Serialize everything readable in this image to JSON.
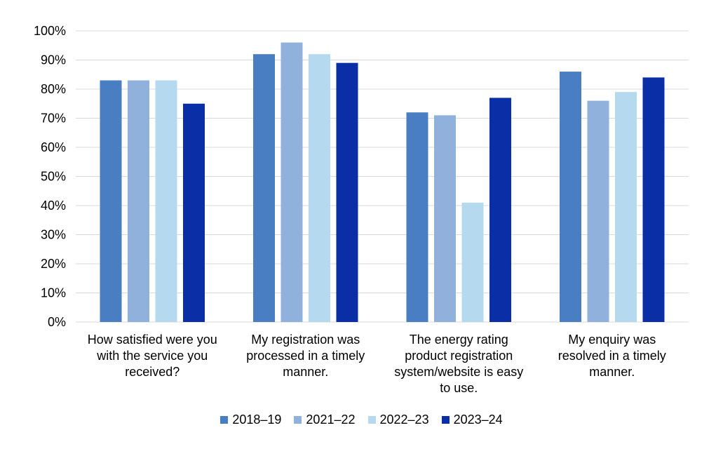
{
  "chart_data": {
    "type": "bar",
    "categories": [
      "How satisfied were you\nwith the service you\nreceived?",
      "My registration was\nprocessed in a timely\nmanner.",
      "The energy rating\nproduct registration\nsystem/website is easy\nto use.",
      "My enquiry was\nresolved in a timely\nmanner."
    ],
    "series": [
      {
        "name": "2018–19",
        "color": "#4a7ec2",
        "values": [
          83,
          92,
          72,
          86
        ]
      },
      {
        "name": "2021–22",
        "color": "#8fb1dc",
        "values": [
          83,
          96,
          71,
          76
        ]
      },
      {
        "name": "2022–23",
        "color": "#b5d9ee",
        "values": [
          83,
          92,
          41,
          79
        ]
      },
      {
        "name": "2023–24",
        "color": "#0a2ea6",
        "values": [
          75,
          89,
          77,
          84
        ]
      }
    ],
    "yticks": [
      "0%",
      "10%",
      "20%",
      "30%",
      "40%",
      "50%",
      "60%",
      "70%",
      "80%",
      "90%",
      "100%"
    ],
    "ylim": [
      0,
      100
    ],
    "grid": true,
    "legend_position": "bottom"
  }
}
